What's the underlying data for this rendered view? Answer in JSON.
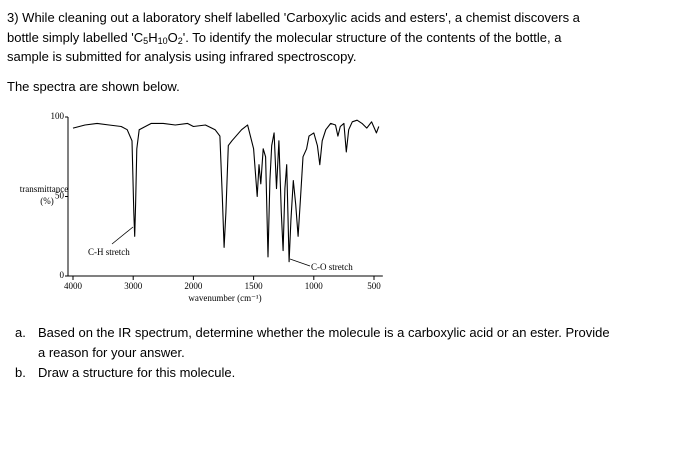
{
  "question": {
    "line1": "3) While cleaning out a laboratory shelf labelled 'Carboxylic acids and esters', a chemist discovers a",
    "line2_before": "bottle simply labelled '",
    "formula": [
      "C",
      "5",
      "H",
      "10",
      "O",
      "2"
    ],
    "line2_after": "'. To identify the molecular structure of the contents of the bottle, a",
    "line3": "sample is submitted for analysis using infrared spectroscopy.",
    "spectra_intro": "The spectra are shown below."
  },
  "chart_data": {
    "type": "line",
    "ylabel": [
      "transmittance",
      "(%)"
    ],
    "xlabel": "wavenumber (cm⁻¹)",
    "xlim": [
      4000,
      460
    ],
    "xticks": [
      4000,
      3000,
      2000,
      1500,
      1000,
      500
    ],
    "ylim": [
      0,
      100
    ],
    "yticks": [
      0,
      50,
      100
    ],
    "color": "#000000",
    "annotations": [
      "C-H stretch",
      "C-O stretch"
    ],
    "x": [
      4000,
      3800,
      3600,
      3400,
      3200,
      3100,
      3020,
      2990,
      2975,
      2960,
      2940,
      2900,
      2700,
      2500,
      2300,
      2100,
      2000,
      1900,
      1820,
      1780,
      1760,
      1745,
      1730,
      1710,
      1680,
      1600,
      1550,
      1500,
      1470,
      1455,
      1440,
      1420,
      1400,
      1380,
      1365,
      1350,
      1330,
      1310,
      1290,
      1270,
      1255,
      1240,
      1225,
      1205,
      1190,
      1170,
      1150,
      1130,
      1110,
      1090,
      1060,
      1040,
      1000,
      970,
      950,
      930,
      900,
      860,
      820,
      800,
      780,
      750,
      730,
      710,
      680,
      640,
      600,
      560,
      520,
      480,
      460
    ],
    "values": [
      93,
      95,
      96,
      95,
      94,
      92,
      85,
      40,
      25,
      45,
      80,
      92,
      96,
      96,
      95,
      96,
      94,
      95,
      92,
      88,
      50,
      18,
      40,
      82,
      85,
      92,
      95,
      80,
      50,
      70,
      58,
      80,
      75,
      12,
      60,
      82,
      90,
      55,
      85,
      40,
      16,
      55,
      70,
      9,
      35,
      60,
      45,
      25,
      50,
      75,
      80,
      88,
      90,
      82,
      70,
      85,
      92,
      96,
      95,
      88,
      94,
      96,
      78,
      92,
      97,
      98,
      96,
      93,
      97,
      90,
      94
    ]
  },
  "tasks": [
    {
      "marker": "a.",
      "lines": [
        "Based on the IR spectrum, determine whether the molecule is a carboxylic acid or an ester. Provide",
        "a reason for your answer."
      ]
    },
    {
      "marker": "b.",
      "lines": [
        "Draw a structure for this molecule."
      ]
    }
  ]
}
